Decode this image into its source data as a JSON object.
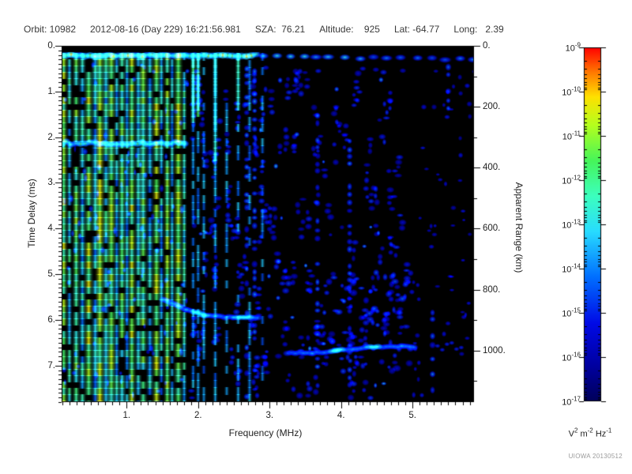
{
  "header": {
    "orbit": "Orbit: 10982",
    "datetime": "2012-08-16 (Day 229) 16:21:56.981",
    "sza": "SZA:  76.21",
    "altitude": "Altitude:    925",
    "lat": "Lat: -64.77",
    "long": "Long:   2.39"
  },
  "footer": {
    "watermark": "UIOWA 20130512"
  },
  "chart_data": {
    "type": "heatmap",
    "subtype": "radar-sounder-ionogram",
    "title": "",
    "xlabel": "Frequency (MHz)",
    "ylabel_left": "Time Delay (ms)",
    "ylabel_right": "Apparent Range (km)",
    "x_range": [
      0.09,
      5.86
    ],
    "y_range_ms": [
      0,
      7.8
    ],
    "x_ticks": [
      1,
      2,
      3,
      4,
      5
    ],
    "x_tick_labels": [
      "1.",
      "2.",
      "3.",
      "4.",
      "5."
    ],
    "x_minor_step": 0.1,
    "y_ticks_ms": [
      0,
      1,
      2,
      3,
      4,
      5,
      6,
      7
    ],
    "y_tick_labels": [
      "0.",
      "1.",
      "2.",
      "3.",
      "4.",
      "5.",
      "6.",
      "7."
    ],
    "y_minor_step_ms": 0.1,
    "grid": false,
    "background": "#000000",
    "right_axis": {
      "ticks_km": [
        0,
        200,
        400,
        600,
        800,
        1000
      ],
      "tick_labels": [
        "0.",
        "200.",
        "400.",
        "600.",
        "800.",
        "1000."
      ],
      "minor_step_km": 100,
      "km_per_ms": 149.9
    },
    "colorbar": {
      "scale": "log10",
      "max": "1e-9",
      "min": "1e-17",
      "exponents": [
        -9,
        -10,
        -11,
        -12,
        -13,
        -14,
        -15,
        -16,
        -17
      ],
      "units": [
        [
          "V",
          "2"
        ],
        [
          "m",
          "-2"
        ],
        [
          "Hz",
          "-1"
        ]
      ],
      "gradient_stops": [
        [
          0.0,
          "#00005a"
        ],
        [
          0.1,
          "#0000a0"
        ],
        [
          0.22,
          "#000ae6"
        ],
        [
          0.35,
          "#006eff"
        ],
        [
          0.48,
          "#28dcff"
        ],
        [
          0.58,
          "#3cffbe"
        ],
        [
          0.68,
          "#46f55a"
        ],
        [
          0.78,
          "#b4ff1e"
        ],
        [
          0.86,
          "#ffe100"
        ],
        [
          0.93,
          "#ff7800"
        ],
        [
          1.0,
          "#ff0000"
        ]
      ]
    },
    "features": {
      "seed": 20130512,
      "surface_band": {
        "t_ms": 0.21,
        "continuous_f_max": 2.87
      },
      "harmonic_stripes": {
        "f_min": 0.12,
        "f_max": 1.84,
        "spacing_mhz": 0.08
      },
      "sparse_stripes": [
        {
          "f": 1.93,
          "dropout": 0.35,
          "top_strong": true,
          "top_end_t": 1.55,
          "top_v": 0.6
        },
        {
          "f": 2.0,
          "dropout": 0.4,
          "top_strong": true,
          "top_end_t": 1.45,
          "top_v": 0.62
        },
        {
          "f": 2.08,
          "dropout": 0.45,
          "top_strong": false,
          "top_end_t": 0,
          "top_v": 0
        },
        {
          "f": 2.24,
          "dropout": 0.4,
          "top_strong": true,
          "top_end_t": 2.5,
          "top_v": 0.5
        },
        {
          "f": 2.4,
          "dropout": 0.5,
          "top_strong": false,
          "top_end_t": 0,
          "top_v": 0
        },
        {
          "f": 2.56,
          "dropout": 0.5,
          "top_strong": true,
          "top_end_t": 1.3,
          "top_v": 0.55
        },
        {
          "f": 2.72,
          "dropout": 0.55,
          "top_strong": false,
          "top_end_t": 0,
          "top_v": 0
        },
        {
          "f": 2.9,
          "dropout": 0.58,
          "top_strong": false,
          "top_end_t": 0,
          "top_v": 0
        }
      ],
      "band_2ms": {
        "t": 2.13,
        "f_min": 0.09,
        "f_max": 1.85
      },
      "echo_traces": [
        {
          "points": [
            [
              1.52,
              5.55
            ],
            [
              1.85,
              5.78
            ],
            [
              2.1,
              5.9
            ],
            [
              2.5,
              5.95
            ],
            [
              2.87,
              5.94
            ]
          ],
          "base_v": 0.38,
          "peaks": [
            2.05,
            2.63
          ],
          "peak_add": 0.25
        },
        {
          "points": [
            [
              3.25,
              6.72
            ],
            [
              3.6,
              6.73
            ],
            [
              3.95,
              6.67
            ],
            [
              4.35,
              6.6
            ],
            [
              4.85,
              6.58
            ],
            [
              5.05,
              6.6
            ]
          ],
          "base_v": 0.35,
          "peaks": [
            3.92,
            4.45
          ],
          "peak_add": 0.3
        }
      ],
      "noise_columns": [
        {
          "f": 2.68,
          "t0": 0.5,
          "t1": 7.7
        },
        {
          "f": 2.79,
          "t0": 0.5,
          "t1": 7.7
        },
        {
          "f": 3.67,
          "t0": 1.5,
          "t1": 7.5
        },
        {
          "f": 4.12,
          "t0": 2.0,
          "t1": 7.5
        },
        {
          "f": 5.28,
          "t0": 5.8,
          "t1": 7.7
        },
        {
          "f": 5.5,
          "t0": 0.4,
          "t1": 1.5
        }
      ],
      "squiggle": {
        "f": 5.35,
        "t": 6.57
      }
    }
  }
}
